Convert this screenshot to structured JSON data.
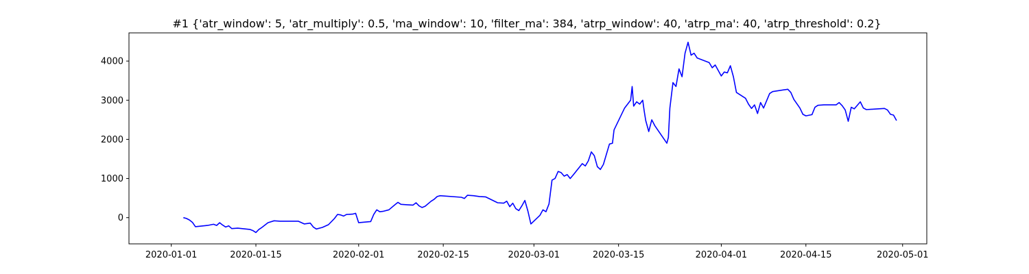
{
  "chart_data": {
    "type": "line",
    "title": "#1 {'atr_window': 5, 'atr_multiply': 0.5, 'ma_window': 10, 'filter_ma': 384, 'atrp_window': 40, 'atrp_ma': 40, 'atrp_threshold': 0.2}",
    "xlabel": "",
    "ylabel": "",
    "x_type": "date",
    "xlim": [
      "2019-12-25",
      "2020-05-05"
    ],
    "ylim": [
      -670,
      4720
    ],
    "x_ticks": [
      "2020-01-01",
      "2020-01-15",
      "2020-02-01",
      "2020-02-15",
      "2020-03-01",
      "2020-03-15",
      "2020-04-01",
      "2020-04-15",
      "2020-05-01"
    ],
    "y_ticks": [
      0,
      1000,
      2000,
      3000,
      4000
    ],
    "grid": false,
    "legend": "none",
    "series": [
      {
        "color": "#0000ff",
        "points": [
          [
            "2020-01-03",
            0
          ],
          [
            "2020-01-03T12",
            -20
          ],
          [
            "2020-01-04",
            -60
          ],
          [
            "2020-01-04T12",
            -120
          ],
          [
            "2020-01-05",
            -230
          ],
          [
            "2020-01-07",
            -200
          ],
          [
            "2020-01-08",
            -170
          ],
          [
            "2020-01-08T12",
            -200
          ],
          [
            "2020-01-09",
            -130
          ],
          [
            "2020-01-09T12",
            -190
          ],
          [
            "2020-01-10",
            -240
          ],
          [
            "2020-01-10T12",
            -210
          ],
          [
            "2020-01-11",
            -280
          ],
          [
            "2020-01-12",
            -270
          ],
          [
            "2020-01-14",
            -300
          ],
          [
            "2020-01-14T12",
            -330
          ],
          [
            "2020-01-15",
            -380
          ],
          [
            "2020-01-15T12",
            -300
          ],
          [
            "2020-01-16",
            -250
          ],
          [
            "2020-01-17",
            -130
          ],
          [
            "2020-01-18",
            -80
          ],
          [
            "2020-01-19",
            -90
          ],
          [
            "2020-01-22",
            -90
          ],
          [
            "2020-01-23",
            -160
          ],
          [
            "2020-01-24",
            -140
          ],
          [
            "2020-01-24T12",
            -240
          ],
          [
            "2020-01-25",
            -290
          ],
          [
            "2020-01-26",
            -250
          ],
          [
            "2020-01-27",
            -180
          ],
          [
            "2020-01-28",
            -20
          ],
          [
            "2020-01-28T12",
            80
          ],
          [
            "2020-01-29",
            70
          ],
          [
            "2020-01-29T12",
            40
          ],
          [
            "2020-01-30",
            80
          ],
          [
            "2020-01-31",
            90
          ],
          [
            "2020-01-31T12",
            110
          ],
          [
            "2020-02-01",
            -130
          ],
          [
            "2020-02-03",
            -100
          ],
          [
            "2020-02-03T12",
            80
          ],
          [
            "2020-02-04",
            200
          ],
          [
            "2020-02-04T12",
            150
          ],
          [
            "2020-02-05",
            160
          ],
          [
            "2020-02-06",
            200
          ],
          [
            "2020-02-07",
            330
          ],
          [
            "2020-02-07T12",
            390
          ],
          [
            "2020-02-08",
            340
          ],
          [
            "2020-02-09",
            330
          ],
          [
            "2020-02-10",
            320
          ],
          [
            "2020-02-10T12",
            380
          ],
          [
            "2020-02-11",
            300
          ],
          [
            "2020-02-11T12",
            260
          ],
          [
            "2020-02-12",
            290
          ],
          [
            "2020-02-13",
            420
          ],
          [
            "2020-02-13T12",
            470
          ],
          [
            "2020-02-14",
            540
          ],
          [
            "2020-02-14T12",
            560
          ],
          [
            "2020-02-18",
            520
          ],
          [
            "2020-02-18T12",
            490
          ],
          [
            "2020-02-19",
            570
          ],
          [
            "2020-02-20",
            560
          ],
          [
            "2020-02-21",
            540
          ],
          [
            "2020-02-22",
            530
          ],
          [
            "2020-02-24",
            380
          ],
          [
            "2020-02-25",
            370
          ],
          [
            "2020-02-25T12",
            420
          ],
          [
            "2020-02-26",
            280
          ],
          [
            "2020-02-26T12",
            370
          ],
          [
            "2020-02-27",
            230
          ],
          [
            "2020-02-27T12",
            180
          ],
          [
            "2020-02-28",
            300
          ],
          [
            "2020-02-28T12",
            440
          ],
          [
            "2020-02-29",
            170
          ],
          [
            "2020-02-29T12",
            -160
          ],
          [
            "2020-03-02",
            60
          ],
          [
            "2020-03-02T12",
            200
          ],
          [
            "2020-03-03",
            150
          ],
          [
            "2020-03-03T12",
            350
          ],
          [
            "2020-03-04",
            960
          ],
          [
            "2020-03-04T12",
            1000
          ],
          [
            "2020-03-05",
            1180
          ],
          [
            "2020-03-05T12",
            1150
          ],
          [
            "2020-03-06",
            1060
          ],
          [
            "2020-03-06T12",
            1100
          ],
          [
            "2020-03-07",
            1000
          ],
          [
            "2020-03-07T12",
            1090
          ],
          [
            "2020-03-09",
            1380
          ],
          [
            "2020-03-09T12",
            1320
          ],
          [
            "2020-03-10",
            1450
          ],
          [
            "2020-03-10T12",
            1680
          ],
          [
            "2020-03-11",
            1580
          ],
          [
            "2020-03-11T12",
            1300
          ],
          [
            "2020-03-12",
            1230
          ],
          [
            "2020-03-12T12",
            1360
          ],
          [
            "2020-03-13",
            1620
          ],
          [
            "2020-03-13T12",
            1880
          ],
          [
            "2020-03-14",
            1900
          ],
          [
            "2020-03-14T06",
            2240
          ],
          [
            "2020-03-16",
            2800
          ],
          [
            "2020-03-17",
            3000
          ],
          [
            "2020-03-17T06",
            3350
          ],
          [
            "2020-03-17T12",
            2850
          ],
          [
            "2020-03-18",
            2960
          ],
          [
            "2020-03-18T12",
            2900
          ],
          [
            "2020-03-19",
            3000
          ],
          [
            "2020-03-19T06",
            2720
          ],
          [
            "2020-03-19T12",
            2480
          ],
          [
            "2020-03-20",
            2200
          ],
          [
            "2020-03-20T12",
            2500
          ],
          [
            "2020-03-21",
            2350
          ],
          [
            "2020-03-23",
            1900
          ],
          [
            "2020-03-23T06",
            2050
          ],
          [
            "2020-03-23T12",
            2800
          ],
          [
            "2020-03-24",
            3450
          ],
          [
            "2020-03-24T12",
            3350
          ],
          [
            "2020-03-25",
            3800
          ],
          [
            "2020-03-25T12",
            3600
          ],
          [
            "2020-03-26",
            4200
          ],
          [
            "2020-03-26T12",
            4480
          ],
          [
            "2020-03-27",
            4150
          ],
          [
            "2020-03-27T12",
            4200
          ],
          [
            "2020-03-28",
            4080
          ],
          [
            "2020-03-30",
            3960
          ],
          [
            "2020-03-30T12",
            3830
          ],
          [
            "2020-03-31",
            3900
          ],
          [
            "2020-04-01",
            3620
          ],
          [
            "2020-04-01T12",
            3720
          ],
          [
            "2020-04-02",
            3700
          ],
          [
            "2020-04-02T12",
            3880
          ],
          [
            "2020-04-03",
            3600
          ],
          [
            "2020-04-03T12",
            3200
          ],
          [
            "2020-04-05",
            3050
          ],
          [
            "2020-04-05T12",
            2900
          ],
          [
            "2020-04-06",
            2790
          ],
          [
            "2020-04-06T12",
            2880
          ],
          [
            "2020-04-07",
            2660
          ],
          [
            "2020-04-07T12",
            2940
          ],
          [
            "2020-04-08",
            2800
          ],
          [
            "2020-04-09",
            3170
          ],
          [
            "2020-04-09T12",
            3220
          ],
          [
            "2020-04-12",
            3280
          ],
          [
            "2020-04-12T12",
            3200
          ],
          [
            "2020-04-13",
            3020
          ],
          [
            "2020-04-14",
            2800
          ],
          [
            "2020-04-14T12",
            2640
          ],
          [
            "2020-04-15",
            2600
          ],
          [
            "2020-04-16",
            2630
          ],
          [
            "2020-04-16T12",
            2820
          ],
          [
            "2020-04-17",
            2870
          ],
          [
            "2020-04-18",
            2880
          ],
          [
            "2020-04-20",
            2880
          ],
          [
            "2020-04-20T12",
            2940
          ],
          [
            "2020-04-21",
            2860
          ],
          [
            "2020-04-21T12",
            2750
          ],
          [
            "2020-04-22",
            2460
          ],
          [
            "2020-04-22T12",
            2820
          ],
          [
            "2020-04-23",
            2780
          ],
          [
            "2020-04-24",
            2960
          ],
          [
            "2020-04-24T12",
            2800
          ],
          [
            "2020-04-25",
            2760
          ],
          [
            "2020-04-28",
            2790
          ],
          [
            "2020-04-28T12",
            2750
          ],
          [
            "2020-04-29",
            2640
          ],
          [
            "2020-04-29T12",
            2620
          ],
          [
            "2020-04-30",
            2480
          ]
        ]
      }
    ]
  }
}
